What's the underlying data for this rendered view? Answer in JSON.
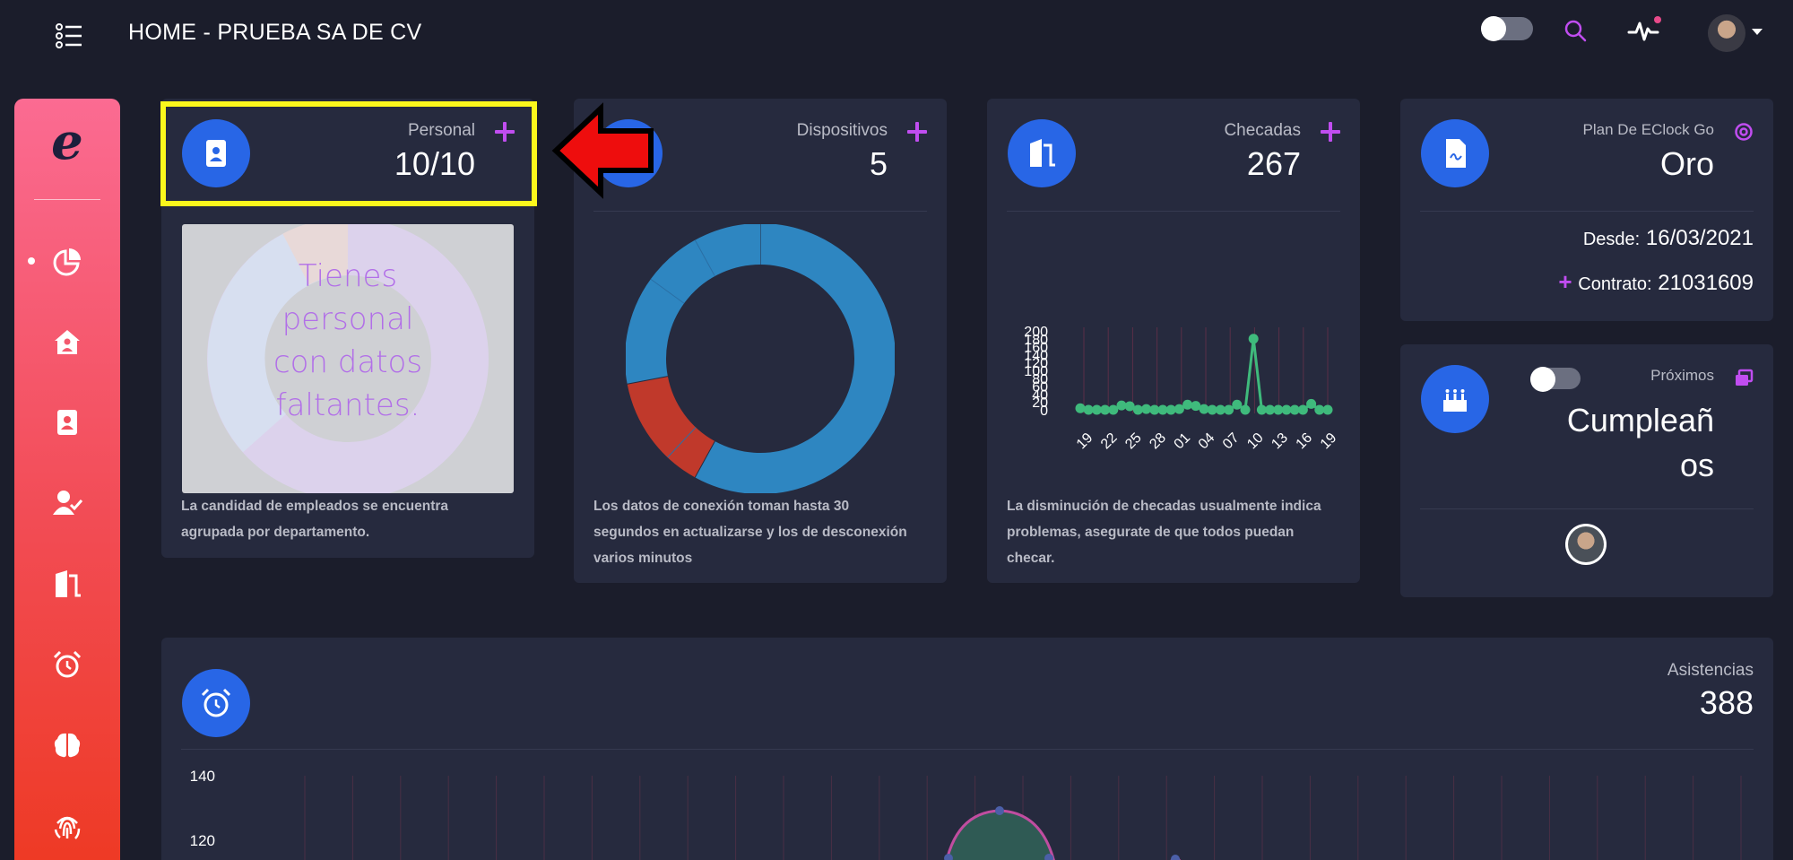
{
  "header": {
    "title": "HOME - PRUEBA SA DE CV"
  },
  "sidebar": {
    "logo": "e",
    "items": [
      "dashboard",
      "home",
      "contacts",
      "employee-check",
      "door",
      "alarm",
      "brain",
      "fingerprint"
    ]
  },
  "cards": {
    "personal": {
      "label": "Personal",
      "value": "10/10",
      "warning": [
        "Tienes",
        "personal",
        "con datos",
        "faltantes."
      ],
      "note": [
        "La candidad de empleados se encuentra",
        "agrupada por departamento."
      ]
    },
    "dispositivos": {
      "label": "Dispositivos",
      "value": "5",
      "note": [
        "Los datos de conexión toman hasta 30",
        "segundos en actualizarse y los de desconexión",
        "varios minutos"
      ]
    },
    "checadas": {
      "label": "Checadas",
      "value": "267",
      "note": [
        "La disminución de checadas usualmente indica",
        "problemas, asegurate de que todos puedan",
        "checar."
      ]
    },
    "plan": {
      "label": "Plan De EClock Go",
      "value": "Oro",
      "since_label": "Desde:",
      "since_value": "16/03/2021",
      "contract_label": "Contrato:",
      "contract_value": "21031609"
    },
    "birthdays": {
      "label": "Próximos",
      "value_line1": "Cumpleañ",
      "value_line2": "os"
    },
    "asistencias": {
      "label": "Asistencias",
      "value": "388"
    }
  },
  "colors": {
    "accent": "#2866e6",
    "plus": "#c04df0",
    "card": "#262a3e",
    "background": "#1b1d2b",
    "line_green": "#3fba7c"
  },
  "chart_data": [
    {
      "type": "pie",
      "title": "",
      "slices": [
        {
          "value": 58,
          "color": "#2e86c1"
        },
        {
          "value": 14,
          "color": "#c0392b"
        },
        {
          "value": 28,
          "color": "#2e86c1"
        }
      ]
    },
    {
      "type": "line",
      "title": "",
      "x": [
        "19",
        "20",
        "21",
        "22",
        "23",
        "24",
        "25",
        "26",
        "27",
        "28",
        "29",
        "30",
        "01",
        "02",
        "03",
        "04",
        "05",
        "06",
        "07",
        "08",
        "09",
        "10",
        "11",
        "12",
        "13",
        "14",
        "15",
        "16",
        "17",
        "18",
        "19"
      ],
      "xticks": [
        "19",
        "22",
        "25",
        "28",
        "01",
        "04",
        "07",
        "10",
        "13",
        "16",
        "19"
      ],
      "values": [
        4,
        0,
        0,
        0,
        0,
        11,
        9,
        0,
        2,
        0,
        0,
        0,
        2,
        13,
        10,
        2,
        0,
        0,
        0,
        13,
        0,
        180,
        0,
        0,
        0,
        0,
        0,
        0,
        15,
        0,
        0
      ],
      "ylim": [
        0,
        200
      ],
      "yticks": [
        "200",
        "180",
        "160",
        "140",
        "120",
        "100",
        "80",
        "60",
        "40",
        "20",
        "0"
      ],
      "color": "#3fba7c"
    },
    {
      "type": "line",
      "title": "",
      "yticks": [
        "140",
        "120"
      ]
    }
  ]
}
